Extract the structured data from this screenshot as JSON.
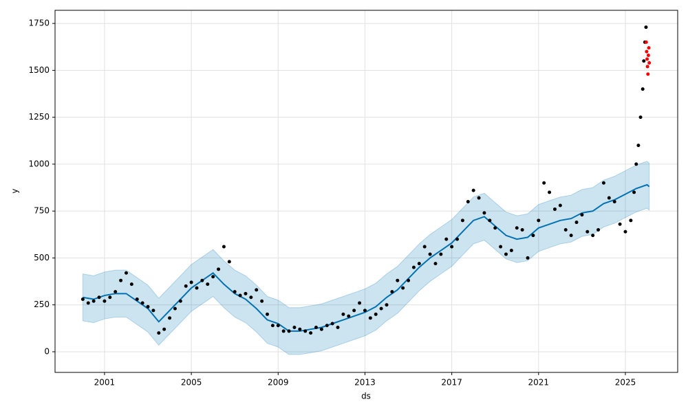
{
  "chart_data": {
    "type": "forecast",
    "x_label": "ds",
    "y_label": "y",
    "xlim": [
      1998.72,
      2027.41
    ],
    "ylim": [
      -110,
      1820
    ],
    "xticks": [
      2001,
      2005,
      2009,
      2013,
      2017,
      2021,
      2025
    ],
    "yticks": [
      0,
      250,
      500,
      750,
      1000,
      1250,
      1500,
      1750
    ],
    "grid": true,
    "band": {
      "color": "#0072b2",
      "x": [
        2000,
        2000.5,
        2001,
        2001.5,
        2002,
        2002.5,
        2003,
        2003.5,
        2004,
        2004.5,
        2005,
        2005.5,
        2006,
        2006.5,
        2007,
        2007.5,
        2008,
        2008.5,
        2009,
        2009.5,
        2010,
        2010.5,
        2011,
        2011.5,
        2012,
        2012.5,
        2013,
        2013.5,
        2014,
        2014.5,
        2015,
        2015.5,
        2016,
        2016.5,
        2017,
        2017.5,
        2018,
        2018.5,
        2019,
        2019.5,
        2020,
        2020.5,
        2021,
        2021.5,
        2022,
        2022.5,
        2023,
        2023.5,
        2024,
        2024.5,
        2025,
        2025.5,
        2026,
        2026.1
      ],
      "upper": [
        415,
        405,
        425,
        435,
        435,
        395,
        355,
        285,
        345,
        405,
        465,
        505,
        545,
        485,
        435,
        405,
        355,
        295,
        275,
        235,
        235,
        245,
        255,
        275,
        295,
        315,
        335,
        365,
        415,
        455,
        515,
        575,
        625,
        665,
        705,
        765,
        825,
        845,
        795,
        745,
        725,
        735,
        785,
        805,
        825,
        835,
        865,
        875,
        915,
        935,
        965,
        995,
        1015,
        1005
      ],
      "lower": [
        165,
        155,
        175,
        185,
        185,
        145,
        105,
        35,
        95,
        155,
        215,
        255,
        295,
        235,
        185,
        155,
        105,
        45,
        25,
        -15,
        -15,
        -5,
        5,
        25,
        45,
        65,
        85,
        115,
        165,
        205,
        265,
        325,
        375,
        415,
        455,
        515,
        575,
        595,
        545,
        495,
        475,
        485,
        535,
        555,
        575,
        585,
        615,
        625,
        665,
        685,
        715,
        745,
        765,
        755
      ],
      "yhat": [
        290,
        280,
        300,
        310,
        310,
        270,
        230,
        160,
        220,
        280,
        340,
        380,
        420,
        360,
        310,
        280,
        230,
        170,
        150,
        110,
        110,
        120,
        130,
        150,
        170,
        190,
        210,
        240,
        290,
        330,
        390,
        450,
        500,
        540,
        580,
        640,
        700,
        720,
        670,
        620,
        600,
        610,
        660,
        680,
        700,
        710,
        740,
        750,
        790,
        810,
        840,
        870,
        890,
        880
      ]
    },
    "series": [
      {
        "color": "#000000",
        "x": [
          2000,
          2000.25,
          2000.5,
          2000.75,
          2001,
          2001.25,
          2001.5,
          2001.75,
          2002,
          2002.25,
          2002.5,
          2002.75,
          2003,
          2003.25,
          2003.5,
          2003.75,
          2004,
          2004.25,
          2004.5,
          2004.75,
          2005,
          2005.25,
          2005.5,
          2005.75,
          2006,
          2006.25,
          2006.5,
          2006.75,
          2007,
          2007.25,
          2007.5,
          2007.75,
          2008,
          2008.25,
          2008.5,
          2008.75,
          2009,
          2009.25,
          2009.5,
          2009.75,
          2010,
          2010.25,
          2010.5,
          2010.75,
          2011,
          2011.25,
          2011.5,
          2011.75,
          2012,
          2012.25,
          2012.5,
          2012.75,
          2013,
          2013.25,
          2013.5,
          2013.75,
          2014,
          2014.25,
          2014.5,
          2014.75,
          2015,
          2015.25,
          2015.5,
          2015.75,
          2016,
          2016.25,
          2016.5,
          2016.75,
          2017,
          2017.25,
          2017.5,
          2017.75,
          2018,
          2018.25,
          2018.5,
          2018.75,
          2019,
          2019.25,
          2019.5,
          2019.75,
          2020,
          2020.25,
          2020.5,
          2020.75,
          2021,
          2021.25,
          2021.5,
          2021.75,
          2022,
          2022.25,
          2022.5,
          2022.75,
          2023,
          2023.25,
          2023.5,
          2023.75,
          2024,
          2024.25,
          2024.5,
          2024.75,
          2025,
          2025.25,
          2025.4,
          2025.5,
          2025.6,
          2025.7,
          2025.8,
          2025.85,
          2025.9,
          2025.95
        ],
        "values": [
          280,
          260,
          270,
          290,
          270,
          290,
          320,
          380,
          420,
          360,
          280,
          260,
          240,
          220,
          100,
          120,
          180,
          230,
          270,
          350,
          370,
          340,
          380,
          360,
          400,
          440,
          560,
          480,
          320,
          300,
          310,
          290,
          330,
          270,
          200,
          140,
          140,
          110,
          110,
          130,
          120,
          110,
          100,
          130,
          120,
          140,
          150,
          130,
          200,
          190,
          220,
          260,
          220,
          180,
          200,
          230,
          250,
          320,
          380,
          340,
          380,
          450,
          470,
          560,
          520,
          470,
          520,
          600,
          560,
          600,
          700,
          800,
          860,
          820,
          740,
          700,
          660,
          560,
          520,
          540,
          660,
          650,
          500,
          620,
          700,
          900,
          850,
          760,
          780,
          650,
          620,
          690,
          730,
          640,
          620,
          650,
          900,
          820,
          800,
          680,
          640,
          700,
          850,
          1000,
          1100,
          1250,
          1400,
          1550,
          1650,
          1730
        ]
      },
      {
        "color": "#ff0000",
        "x": [
          2025.96,
          2025.98,
          2026,
          2026.02,
          2026.04,
          2026.06,
          2026.08,
          2026.1
        ],
        "values": [
          1650,
          1600,
          1560,
          1520,
          1480,
          1580,
          1620,
          1540
        ]
      }
    ]
  }
}
